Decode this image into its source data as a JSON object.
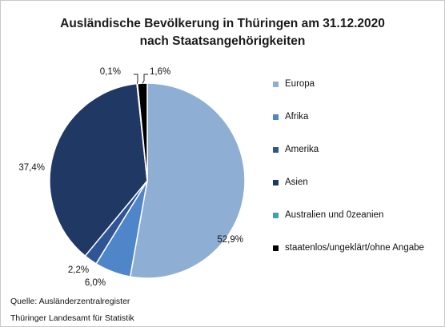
{
  "chart_data": {
    "type": "pie",
    "title": "Ausländische Bevölkerung in Thüringen am 31.12.2020",
    "subtitle": "nach Staatsangehörigkeiten",
    "slices": [
      {
        "label": "Europa",
        "value": 52.9,
        "display": "52,9%",
        "color": "#8faed3"
      },
      {
        "label": "Afrika",
        "value": 6.0,
        "display": "6,0%",
        "color": "#4f86c9"
      },
      {
        "label": "Amerika",
        "value": 2.2,
        "display": "2,2%",
        "color": "#2f5597"
      },
      {
        "label": "Asien",
        "value": 37.4,
        "display": "37,4%",
        "color": "#1f3864"
      },
      {
        "label": "Australien und 0zeanien",
        "value": 0.1,
        "display": "0,1%",
        "color": "#3aa3b2"
      },
      {
        "label": "staatenlos/ungeklärt/ohne Angabe",
        "value": 1.6,
        "display": "1,6%",
        "color": "#000000"
      }
    ],
    "legend_position": "right"
  },
  "footer": {
    "source": "Quelle: Ausländerzentralregister",
    "publisher": "Thüringer Landesamt für Statistik"
  }
}
